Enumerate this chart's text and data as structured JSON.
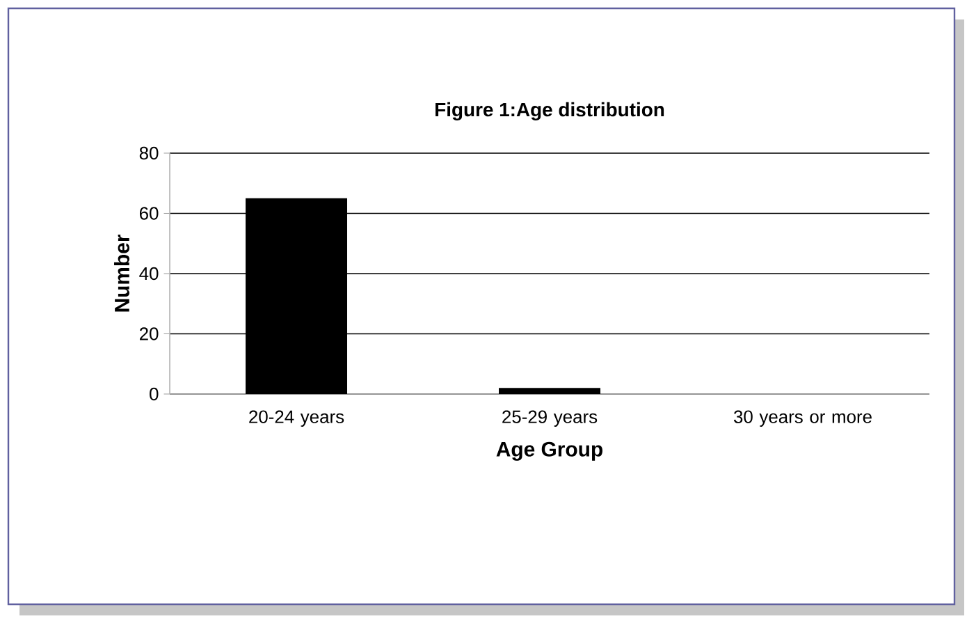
{
  "chart_data": {
    "type": "bar",
    "title": "Figure 1:Age distribution",
    "xlabel": "Age Group",
    "ylabel": "Number",
    "categories": [
      "20-24 years",
      "25-29 years",
      "30 years or more"
    ],
    "values": [
      65,
      2,
      0
    ],
    "color": "#000000",
    "ylim": [
      0,
      80
    ],
    "yticks": [
      0,
      20,
      40,
      60,
      80
    ],
    "grid": "y"
  }
}
